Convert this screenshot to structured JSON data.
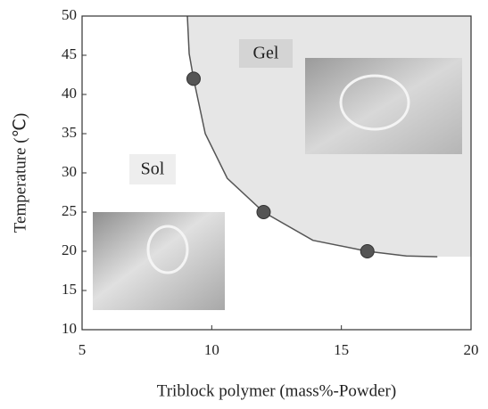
{
  "chart_data": {
    "type": "scatter",
    "x_label": "Triblock polymer  (mass%-Powder)",
    "y_label": "Temperature (℃)",
    "annotations": [
      "Gel",
      "Sol"
    ],
    "x": [
      9.3,
      12,
      16
    ],
    "values": [
      42,
      25,
      20
    ],
    "color": "#555555",
    "boundary": {
      "x": [
        9.06,
        9.13,
        9.3,
        9.75,
        10.6,
        12,
        13.9,
        16,
        17.5,
        18.7
      ],
      "values": [
        50,
        45.2,
        42,
        35,
        29.3,
        25,
        21.4,
        20,
        19.4,
        19.3
      ],
      "fill": "#e6e6e6",
      "color": "#555555"
    },
    "xlim": [
      5,
      20
    ],
    "xticks": [
      5,
      10,
      15,
      20
    ],
    "ylim": [
      10,
      50
    ],
    "yticks": [
      10,
      15,
      20,
      25,
      30,
      35,
      40,
      45,
      50
    ]
  }
}
